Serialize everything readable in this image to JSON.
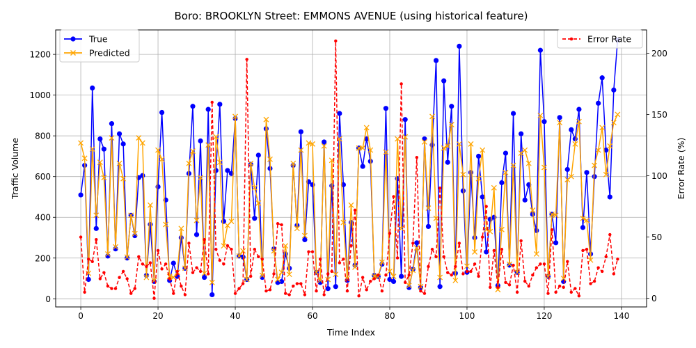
{
  "chart_data": {
    "type": "line",
    "title": "Boro: BROOKLYN Street: EMMONS AVENUE (using historical feature)",
    "xlabel": "Time Index",
    "ylabel": "Traffic Volume",
    "y2label": "Error Rate (%)",
    "xlim": [
      -6.5,
      146.5
    ],
    "ylim": [
      -40,
      1320
    ],
    "y2lim": [
      -7,
      219
    ],
    "xticks": [
      0,
      20,
      40,
      60,
      80,
      100,
      120,
      140
    ],
    "yticks": [
      0,
      200,
      400,
      600,
      800,
      1000,
      1200
    ],
    "y2ticks": [
      0,
      50,
      100,
      150,
      200
    ],
    "grid": true,
    "legend_left": "upper-left",
    "legend_right": "upper-right",
    "colors": {
      "true": "#0000ff",
      "predicted": "#ffa500",
      "error": "#ff0000"
    },
    "x": [
      0,
      1,
      2,
      3,
      4,
      5,
      6,
      7,
      8,
      9,
      10,
      11,
      12,
      13,
      14,
      15,
      16,
      17,
      18,
      19,
      20,
      21,
      22,
      23,
      24,
      25,
      26,
      27,
      28,
      29,
      30,
      31,
      32,
      33,
      34,
      35,
      36,
      37,
      38,
      39,
      40,
      41,
      42,
      43,
      44,
      45,
      46,
      47,
      48,
      49,
      50,
      51,
      52,
      53,
      54,
      55,
      56,
      57,
      58,
      59,
      60,
      61,
      62,
      63,
      64,
      65,
      66,
      67,
      68,
      69,
      70,
      71,
      72,
      73,
      74,
      75,
      76,
      77,
      78,
      79,
      80,
      81,
      82,
      83,
      84,
      85,
      86,
      87,
      88,
      89,
      90,
      91,
      92,
      93,
      94,
      95,
      96,
      97,
      98,
      99,
      100,
      101,
      102,
      103,
      104,
      105,
      106,
      107,
      108,
      109,
      110,
      111,
      112,
      113,
      114,
      115,
      116,
      117,
      118,
      119,
      120,
      121,
      122,
      123,
      124,
      125,
      126,
      127,
      128,
      129,
      130,
      131,
      132,
      133,
      134,
      135,
      136,
      137,
      138,
      139
    ],
    "series": [
      {
        "name": "True",
        "axis": "left",
        "values": [
          510,
          655,
          95,
          1035,
          345,
          785,
          735,
          210,
          860,
          245,
          810,
          760,
          200,
          410,
          310,
          595,
          605,
          115,
          365,
          85,
          550,
          915,
          485,
          90,
          175,
          110,
          300,
          150,
          615,
          945,
          315,
          775,
          105,
          930,
          20,
          630,
          955,
          380,
          630,
          615,
          885,
          210,
          205,
          95,
          660,
          395,
          705,
          105,
          835,
          640,
          245,
          80,
          85,
          220,
          150,
          655,
          360,
          820,
          290,
          575,
          560,
          130,
          80,
          770,
          50,
          555,
          60,
          910,
          560,
          90,
          375,
          165,
          740,
          650,
          785,
          675,
          115,
          110,
          170,
          935,
          95,
          85,
          590,
          110,
          880,
          55,
          145,
          275,
          55,
          785,
          355,
          755,
          1170,
          60,
          1070,
          670,
          945,
          125,
          1240,
          530,
          130,
          620,
          300,
          700,
          500,
          230,
          390,
          400,
          65,
          570,
          715,
          165,
          910,
          130,
          810,
          485,
          560,
          415,
          335,
          1220,
          870,
          110,
          415,
          275,
          890,
          85,
          635,
          830,
          785,
          930,
          350,
          620,
          220,
          600,
          960,
          1085,
          730,
          500,
          1025,
          1270
        ]
      },
      {
        "name": "Predicted",
        "axis": "left",
        "values": [
          765,
          690,
          125,
          735,
          410,
          670,
          595,
          220,
          790,
          255,
          665,
          590,
          205,
          410,
          320,
          790,
          765,
          105,
          460,
          90,
          730,
          685,
          365,
          110,
          105,
          130,
          345,
          150,
          665,
          725,
          385,
          595,
          125,
          755,
          80,
          795,
          670,
          260,
          360,
          380,
          895,
          210,
          235,
          95,
          665,
          545,
          470,
          115,
          880,
          685,
          235,
          95,
          130,
          260,
          120,
          665,
          345,
          730,
          310,
          765,
          760,
          130,
          90,
          750,
          95,
          680,
          120,
          785,
          375,
          100,
          460,
          155,
          740,
          740,
          840,
          730,
          110,
          110,
          180,
          720,
          135,
          110,
          785,
          345,
          795,
          65,
          140,
          250,
          60,
          770,
          445,
          895,
          395,
          105,
          740,
          750,
          855,
          90,
          760,
          610,
          160,
          760,
          230,
          590,
          730,
          340,
          330,
          545,
          45,
          340,
          620,
          170,
          655,
          130,
          715,
          730,
          665,
          435,
          220,
          900,
          645,
          110,
          415,
          410,
          865,
          100,
          585,
          600,
          760,
          870,
          395,
          385,
          190,
          655,
          730,
          840,
          610,
          750,
          865,
          905
        ]
      },
      {
        "name": "Error Rate",
        "axis": "right",
        "values": [
          50,
          5,
          32,
          30,
          48,
          16,
          21,
          10,
          8,
          8,
          17,
          22,
          16,
          4,
          8,
          34,
          28,
          26,
          29,
          0,
          39,
          24,
          28,
          16,
          4,
          22,
          10,
          3,
          45,
          21,
          25,
          22,
          48,
          20,
          160,
          40,
          31,
          28,
          43,
          40,
          4,
          8,
          12,
          195,
          18,
          40,
          34,
          32,
          6,
          7,
          20,
          61,
          60,
          4,
          3,
          10,
          12,
          12,
          3,
          38,
          38,
          6,
          32,
          3,
          20,
          22,
          210,
          29,
          32,
          6,
          43,
          72,
          2,
          17,
          7,
          14,
          16,
          19,
          6,
          19,
          53,
          83,
          33,
          175,
          13,
          19,
          45,
          115,
          6,
          4,
          26,
          40,
          34,
          90,
          34,
          21,
          19,
          26,
          45,
          20,
          22,
          22,
          28,
          18,
          50,
          75,
          9,
          39,
          9,
          40,
          13,
          11,
          27,
          5,
          47,
          14,
          10,
          19,
          25,
          28,
          28,
          4,
          56,
          5,
          10,
          9,
          30,
          5,
          8,
          2,
          39,
          40,
          12,
          14,
          25,
          22,
          34,
          52,
          20,
          32
        ]
      }
    ]
  }
}
